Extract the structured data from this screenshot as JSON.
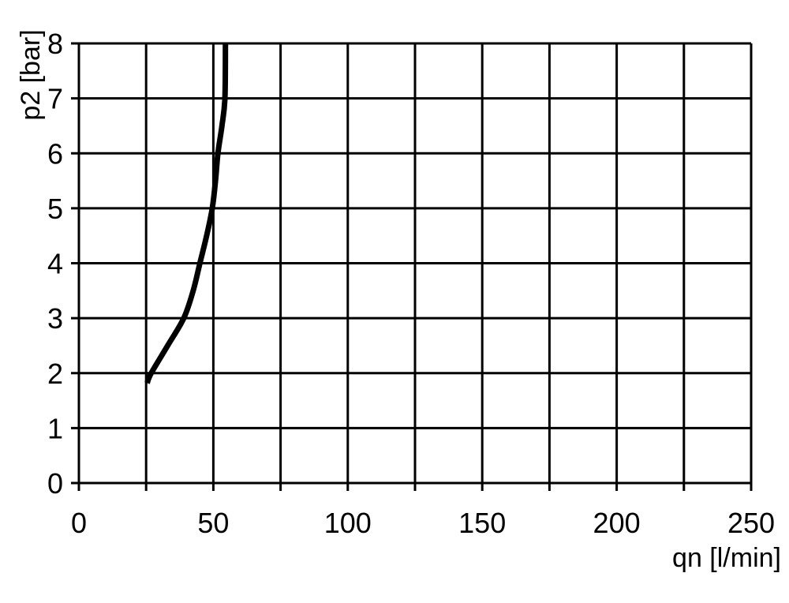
{
  "chart_data": {
    "type": "line",
    "title": "",
    "xlabel": "qn [l/min]",
    "ylabel": "p2 [bar]",
    "xlim": [
      0,
      250
    ],
    "ylim": [
      0,
      8
    ],
    "xticks": [
      0,
      50,
      100,
      150,
      200,
      250
    ],
    "yticks": [
      0,
      1,
      2,
      3,
      4,
      5,
      6,
      7,
      8
    ],
    "x_grid_step": 25,
    "y_grid_step": 1,
    "grid": true,
    "line_color": "#000000",
    "series": [
      {
        "x": [
          25.4,
          26.9,
          33,
          39,
          42.5,
          45,
          47.5,
          49.6,
          50.8,
          51.7,
          53.2,
          54.3,
          54.5
        ],
        "y": [
          1.82,
          2.0,
          2.5,
          3.0,
          3.5,
          4.0,
          4.5,
          5.0,
          5.5,
          6.0,
          6.5,
          7.0,
          8.0
        ]
      }
    ]
  }
}
